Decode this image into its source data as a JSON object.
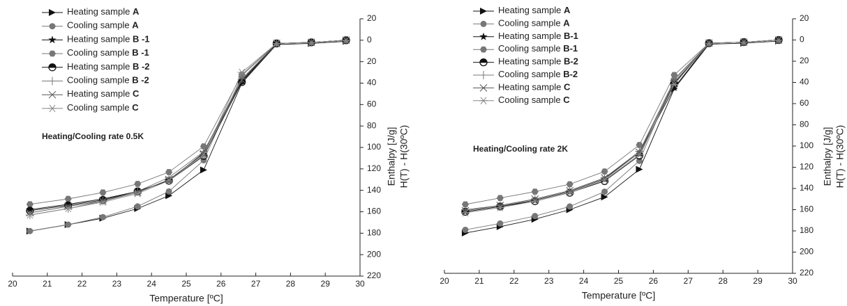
{
  "chart_data": [
    {
      "type": "line",
      "annotation": "Heating/Cooling rate 0.5K",
      "x_label": "Temperature [ºC]",
      "y_label": [
        "Enthalpy [J/g]",
        "H(T) - H(30ºC)"
      ],
      "x": [
        20.5,
        21.6,
        22.6,
        23.6,
        24.5,
        25.5,
        26.6,
        27.6,
        28.6,
        29.6
      ],
      "xlim": [
        20,
        30
      ],
      "xticks": [
        20,
        21,
        22,
        23,
        24,
        25,
        26,
        27,
        28,
        29,
        30
      ],
      "ylim": [
        -220,
        20
      ],
      "yticks": [
        20,
        0,
        {
          "value": -20,
          "label": "20"
        },
        {
          "value": -40,
          "label": "40"
        },
        {
          "value": -60,
          "label": "60"
        },
        {
          "value": -80,
          "label": "80"
        },
        {
          "value": -100,
          "label": "100"
        },
        {
          "value": -120,
          "label": "120"
        },
        {
          "value": -140,
          "label": "140"
        },
        {
          "value": -160,
          "label": "160"
        },
        {
          "value": -180,
          "label": "180"
        },
        {
          "value": -200,
          "label": "200"
        },
        {
          "value": -220,
          "label": "220"
        }
      ],
      "y_axis_side": "right",
      "grid": false,
      "legend": "upper left",
      "series": [
        {
          "name": "Heating sample A",
          "color": "#111111",
          "marker": "triangle",
          "values": [
            -178,
            -172,
            -166,
            -157,
            -145,
            -121,
            -40,
            -4,
            -3,
            -1
          ]
        },
        {
          "name": "Cooling sample A",
          "color": "#777777",
          "marker": "circle",
          "values": [
            -178,
            -172,
            -165,
            -155,
            -141,
            -112,
            -33,
            -3,
            -2,
            0
          ]
        },
        {
          "name": "Heating sample B -1",
          "color": "#111111",
          "marker": "star",
          "values": [
            -158,
            -153,
            -148,
            -141,
            -131,
            -105,
            -38,
            -3,
            -2,
            0
          ]
        },
        {
          "name": "Cooling sample B -1",
          "color": "#777777",
          "marker": "hexagon",
          "values": [
            -153,
            -148,
            -142,
            -134,
            -123,
            -99,
            -32,
            -3,
            -2,
            0
          ]
        },
        {
          "name": "Heating sample B -2",
          "color": "#111111",
          "marker": "halfcircle",
          "values": [
            -159,
            -154,
            -149,
            -141,
            -131,
            -108,
            -39,
            -3,
            -2,
            0
          ]
        },
        {
          "name": "Cooling sample B -2",
          "color": "#777777",
          "marker": "plus",
          "values": [
            -163,
            -157,
            -150,
            -141,
            -128,
            -104,
            -36,
            -3,
            -2,
            0
          ]
        },
        {
          "name": "Heating sample C",
          "color": "#555555",
          "marker": "x",
          "values": [
            -161,
            -155,
            -150,
            -142,
            -130,
            -106,
            -37,
            -3,
            -2,
            0
          ]
        },
        {
          "name": "Cooling sample C",
          "color": "#888888",
          "marker": "asterisk",
          "values": [
            -163,
            -157,
            -151,
            -143,
            -131,
            -107,
            -30,
            -3,
            -2,
            0
          ]
        }
      ]
    },
    {
      "type": "line",
      "annotation": "Heating/Cooling rate 2K",
      "x_label": "Temperature [ºC]",
      "y_label": [
        "Enthalpy [J/g]",
        "H(T) - H(30ºC)"
      ],
      "x": [
        20.6,
        21.6,
        22.6,
        23.6,
        24.6,
        25.6,
        26.6,
        27.6,
        28.6,
        29.6
      ],
      "xlim": [
        20,
        30
      ],
      "xticks": [
        20,
        21,
        22,
        23,
        24,
        25,
        26,
        27,
        28,
        29,
        30
      ],
      "ylim": [
        -220,
        20
      ],
      "yticks": [
        20,
        0,
        {
          "value": -20,
          "label": "20"
        },
        {
          "value": -40,
          "label": "40"
        },
        {
          "value": -60,
          "label": "60"
        },
        {
          "value": -80,
          "label": "80"
        },
        {
          "value": -100,
          "label": "100"
        },
        {
          "value": -120,
          "label": "120"
        },
        {
          "value": -140,
          "label": "140"
        },
        {
          "value": -160,
          "label": "160"
        },
        {
          "value": -180,
          "label": "180"
        },
        {
          "value": -200,
          "label": "200"
        },
        {
          "value": -220,
          "label": "220"
        }
      ],
      "y_axis_side": "right",
      "grid": false,
      "legend": "upper left",
      "series": [
        {
          "name": "Heating sample A",
          "color": "#111111",
          "marker": "triangle",
          "values": [
            -182,
            -176,
            -169,
            -160,
            -148,
            -122,
            -46,
            -4,
            -3,
            -1
          ]
        },
        {
          "name": "Cooling sample A",
          "color": "#777777",
          "marker": "circle",
          "values": [
            -179,
            -173,
            -166,
            -157,
            -143,
            -114,
            -37,
            -3,
            -2,
            0
          ]
        },
        {
          "name": "Heating sample B-1",
          "color": "#111111",
          "marker": "star",
          "values": [
            -162,
            -157,
            -151,
            -143,
            -131,
            -106,
            -45,
            -3,
            -2,
            0
          ]
        },
        {
          "name": "Cooling sample B-1",
          "color": "#777777",
          "marker": "hexagon",
          "values": [
            -155,
            -149,
            -143,
            -136,
            -124,
            -99,
            -33,
            -3,
            -2,
            0
          ]
        },
        {
          "name": "Heating sample B-2",
          "color": "#111111",
          "marker": "halfcircle",
          "values": [
            -162,
            -157,
            -152,
            -144,
            -133,
            -109,
            -41,
            -3,
            -2,
            0
          ]
        },
        {
          "name": "Cooling sample B-2",
          "color": "#777777",
          "marker": "plus",
          "values": [
            -160,
            -156,
            -150,
            -142,
            -130,
            -105,
            -38,
            -3,
            -2,
            0
          ]
        },
        {
          "name": "Heating sample C",
          "color": "#555555",
          "marker": "x",
          "values": [
            -161,
            -156,
            -150,
            -142,
            -130,
            -106,
            -40,
            -3,
            -2,
            0
          ]
        },
        {
          "name": "Cooling sample C",
          "color": "#888888",
          "marker": "asterisk",
          "values": [
            -163,
            -158,
            -152,
            -144,
            -132,
            -108,
            -42,
            -3,
            -2,
            0
          ]
        }
      ]
    }
  ]
}
